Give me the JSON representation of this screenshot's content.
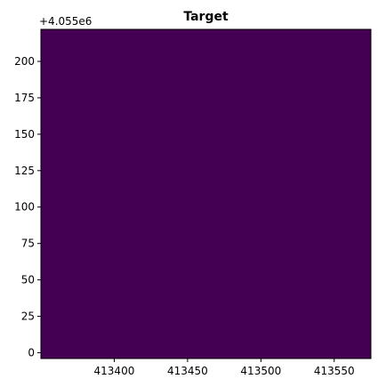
{
  "chart_data": {
    "type": "heatmap",
    "title": "Target",
    "xlabel": "",
    "ylabel": "",
    "y_offset_label": "+4.055e6",
    "xlim": [
      413350,
      413575
    ],
    "ylim": [
      -4,
      222
    ],
    "x_ticks": [
      413400,
      413450,
      413500,
      413550
    ],
    "x_tick_labels": [
      "413400",
      "413450",
      "413500",
      "413550"
    ],
    "y_ticks": [
      0,
      25,
      50,
      75,
      100,
      125,
      150,
      175,
      200
    ],
    "y_tick_labels": [
      "0",
      "25",
      "50",
      "75",
      "100",
      "125",
      "150",
      "175",
      "200"
    ],
    "image_extent": {
      "x": [
        413350,
        413575
      ],
      "y": [
        -4,
        222
      ]
    },
    "grid": false,
    "values": [
      [
        0
      ]
    ],
    "colors": {
      "fill": "#440154",
      "axis": "#000000"
    }
  }
}
